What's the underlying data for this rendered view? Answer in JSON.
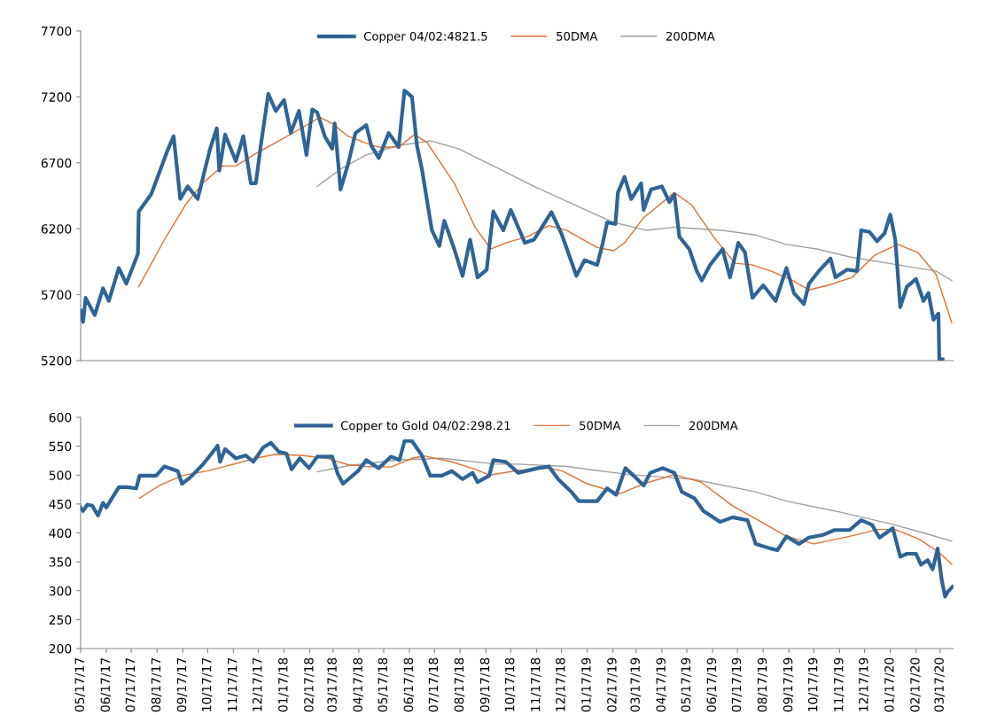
{
  "chart_data": [
    {
      "type": "line",
      "legend": "top",
      "tick_labels": "y",
      "xlim": [
        "2017-05-17",
        "2020-04-02"
      ],
      "ylim": [
        5200,
        7700
      ],
      "yticks": [
        5200,
        5700,
        6200,
        6700,
        7200,
        7700
      ],
      "series": [
        {
          "name": "Copper 04/02:4821.5",
          "color": "#2e6496",
          "x": [
            "2017-05-17",
            "2017-05-20",
            "2017-05-23",
            "2017-06-03",
            "2017-06-13",
            "2017-06-20",
            "2017-07-02",
            "2017-07-11",
            "2017-07-25",
            "2017-07-26",
            "2017-08-10",
            "2017-08-29",
            "2017-09-06",
            "2017-09-14",
            "2017-09-23",
            "2017-10-05",
            "2017-10-20",
            "2017-10-28",
            "2017-10-31",
            "2017-11-07",
            "2017-11-20",
            "2017-11-29",
            "2017-12-08",
            "2017-12-14",
            "2017-12-20",
            "2017-12-29",
            "2018-01-07",
            "2018-01-17",
            "2018-01-25",
            "2018-02-04",
            "2018-02-13",
            "2018-02-20",
            "2018-02-26",
            "2018-03-07",
            "2018-03-16",
            "2018-03-19",
            "2018-03-26",
            "2018-04-04",
            "2018-04-13",
            "2018-04-26",
            "2018-05-02",
            "2018-05-11",
            "2018-05-23",
            "2018-06-04",
            "2018-06-11",
            "2018-06-20",
            "2018-06-26",
            "2018-07-02",
            "2018-07-14",
            "2018-07-23",
            "2018-07-29",
            "2018-08-10",
            "2018-08-20",
            "2018-08-29",
            "2018-09-07",
            "2018-09-18",
            "2018-09-26",
            "2018-10-08",
            "2018-10-17",
            "2018-11-03",
            "2018-11-14",
            "2018-12-05",
            "2018-12-17",
            "2019-01-04",
            "2019-01-14",
            "2019-01-29",
            "2019-02-04",
            "2019-02-10",
            "2019-02-20",
            "2019-02-23",
            "2019-03-03",
            "2019-03-11",
            "2019-03-23",
            "2019-03-26",
            "2019-04-04",
            "2019-04-17",
            "2019-04-26",
            "2019-05-02",
            "2019-05-08",
            "2019-05-20",
            "2019-05-29",
            "2019-06-04",
            "2019-06-14",
            "2019-06-23",
            "2019-06-29",
            "2019-07-08",
            "2019-07-18",
            "2019-07-26",
            "2019-08-04",
            "2019-08-17",
            "2019-09-01",
            "2019-09-14",
            "2019-09-23",
            "2019-10-05",
            "2019-10-11",
            "2019-10-23",
            "2019-11-06",
            "2019-11-12",
            "2019-11-26",
            "2019-12-08",
            "2019-12-13",
            "2019-12-23",
            "2020-01-01",
            "2020-01-10",
            "2020-01-17",
            "2020-01-23",
            "2020-01-29",
            "2020-02-06",
            "2020-02-17",
            "2020-02-26",
            "2020-03-03",
            "2020-03-09",
            "2020-03-15",
            "2020-03-16",
            "2020-03-20"
          ],
          "values": [
            5580,
            5493,
            5676,
            5545,
            5748,
            5652,
            5902,
            5783,
            6010,
            6330,
            6462,
            6783,
            6902,
            6426,
            6521,
            6426,
            6807,
            6962,
            6640,
            6914,
            6712,
            6902,
            6545,
            6545,
            6831,
            7224,
            7093,
            7176,
            6926,
            7093,
            6760,
            7105,
            7081,
            6902,
            6807,
            6998,
            6498,
            6688,
            6926,
            6986,
            6831,
            6736,
            6926,
            6819,
            7248,
            7200,
            6831,
            6652,
            6188,
            6069,
            6260,
            6045,
            5843,
            6117,
            5831,
            5890,
            6331,
            6188,
            6343,
            6093,
            6117,
            6326,
            6164,
            5843,
            5962,
            5926,
            6069,
            6248,
            6236,
            6474,
            6593,
            6426,
            6545,
            6343,
            6498,
            6521,
            6402,
            6462,
            6140,
            6045,
            5879,
            5807,
            5926,
            5998,
            6045,
            5831,
            6093,
            6021,
            5676,
            5771,
            5652,
            5902,
            5712,
            5629,
            5783,
            5879,
            5974,
            5831,
            5890,
            5879,
            6188,
            6176,
            6105,
            6164,
            6307,
            6117,
            5605,
            5760,
            5819,
            5652,
            5712,
            5510,
            5557,
            5210,
            5210
          ]
        },
        {
          "name": "50DMA",
          "color": "#e07030",
          "x": [
            "2017-07-26",
            "2017-08-26",
            "2017-09-20",
            "2017-10-11",
            "2017-11-04",
            "2017-11-20",
            "2017-12-11",
            "2018-01-11",
            "2018-02-10",
            "2018-03-01",
            "2018-03-16",
            "2018-04-04",
            "2018-04-23",
            "2018-05-11",
            "2018-06-04",
            "2018-06-23",
            "2018-07-08",
            "2018-08-10",
            "2018-09-04",
            "2018-09-23",
            "2018-10-11",
            "2018-11-06",
            "2018-12-02",
            "2018-12-23",
            "2019-01-29",
            "2019-02-18",
            "2019-03-03",
            "2019-03-26",
            "2019-05-02",
            "2019-05-23",
            "2019-06-18",
            "2019-07-14",
            "2019-08-03",
            "2019-08-26",
            "2019-09-18",
            "2019-10-11",
            "2019-11-03",
            "2019-12-02",
            "2019-12-29",
            "2020-01-26",
            "2020-02-19",
            "2020-03-12",
            "2020-03-31"
          ],
          "values": [
            5760,
            6117,
            6379,
            6545,
            6676,
            6676,
            6760,
            6867,
            6974,
            7045,
            6998,
            6902,
            6855,
            6819,
            6819,
            6914,
            6855,
            6545,
            6212,
            6045,
            6093,
            6140,
            6224,
            6188,
            6057,
            6033,
            6093,
            6283,
            6474,
            6379,
            6140,
            5938,
            5926,
            5879,
            5819,
            5736,
            5771,
            5831,
            5998,
            6081,
            6021,
            5855,
            5486
          ]
        },
        {
          "name": "200DMA",
          "color": "#a0a0a0",
          "x": [
            "2018-02-26",
            "2018-03-26",
            "2018-04-26",
            "2018-06-04",
            "2018-07-12",
            "2018-08-15",
            "2018-09-30",
            "2018-11-14",
            "2019-01-11",
            "2019-02-18",
            "2019-03-29",
            "2019-05-02",
            "2019-06-29",
            "2019-08-08",
            "2019-09-14",
            "2019-10-22",
            "2019-11-29",
            "2020-01-26",
            "2020-03-12",
            "2020-03-31"
          ],
          "values": [
            6521,
            6652,
            6760,
            6831,
            6867,
            6807,
            6664,
            6521,
            6355,
            6248,
            6188,
            6212,
            6188,
            6152,
            6081,
            6045,
            5986,
            5926,
            5879,
            5807
          ]
        }
      ]
    },
    {
      "type": "line",
      "legend": "top",
      "xlim": [
        "2017-05-17",
        "2020-04-02"
      ],
      "ylim": [
        200,
        600
      ],
      "yticks": [
        200,
        250,
        300,
        350,
        400,
        450,
        500,
        550,
        600
      ],
      "xticks": [
        {
          "value": "2017-05-17",
          "label": "05/17/17"
        },
        {
          "value": "2017-06-17",
          "label": "06/17/17"
        },
        {
          "value": "2017-07-17",
          "label": "07/17/17"
        },
        {
          "value": "2017-08-17",
          "label": "08/17/17"
        },
        {
          "value": "2017-09-17",
          "label": "09/17/17"
        },
        {
          "value": "2017-10-17",
          "label": "10/17/17"
        },
        {
          "value": "2017-11-17",
          "label": "11/17/17"
        },
        {
          "value": "2017-12-17",
          "label": "12/17/17"
        },
        {
          "value": "2018-01-17",
          "label": "01/17/18"
        },
        {
          "value": "2018-02-17",
          "label": "02/17/18"
        },
        {
          "value": "2018-03-17",
          "label": "03/17/18"
        },
        {
          "value": "2018-04-17",
          "label": "04/17/18"
        },
        {
          "value": "2018-05-17",
          "label": "05/17/18"
        },
        {
          "value": "2018-06-17",
          "label": "06/17/18"
        },
        {
          "value": "2018-07-17",
          "label": "07/17/18"
        },
        {
          "value": "2018-08-17",
          "label": "08/17/18"
        },
        {
          "value": "2018-09-17",
          "label": "09/17/18"
        },
        {
          "value": "2018-10-17",
          "label": "10/17/18"
        },
        {
          "value": "2018-11-17",
          "label": "11/17/18"
        },
        {
          "value": "2018-12-17",
          "label": "12/17/18"
        },
        {
          "value": "2019-01-17",
          "label": "01/17/19"
        },
        {
          "value": "2019-02-17",
          "label": "02/17/19"
        },
        {
          "value": "2019-03-17",
          "label": "03/17/19"
        },
        {
          "value": "2019-04-17",
          "label": "04/17/19"
        },
        {
          "value": "2019-05-17",
          "label": "05/17/19"
        },
        {
          "value": "2019-06-17",
          "label": "06/17/19"
        },
        {
          "value": "2019-07-17",
          "label": "07/17/19"
        },
        {
          "value": "2019-08-17",
          "label": "08/17/19"
        },
        {
          "value": "2019-09-17",
          "label": "09/17/19"
        },
        {
          "value": "2019-10-17",
          "label": "10/17/19"
        },
        {
          "value": "2019-11-17",
          "label": "11/17/19"
        },
        {
          "value": "2019-12-17",
          "label": "12/17/19"
        },
        {
          "value": "2020-01-17",
          "label": "01/17/20"
        },
        {
          "value": "2020-02-17",
          "label": "02/17/20"
        },
        {
          "value": "2020-03-17",
          "label": "03/17/20"
        }
      ],
      "series": [
        {
          "name": "Copper to Gold 04/02:298.21",
          "color": "#2e6496",
          "x": [
            "2017-05-17",
            "2017-05-20",
            "2017-05-25",
            "2017-05-31",
            "2017-06-07",
            "2017-06-13",
            "2017-06-17",
            "2017-06-23",
            "2017-07-02",
            "2017-07-12",
            "2017-07-23",
            "2017-07-27",
            "2017-08-16",
            "2017-08-26",
            "2017-09-11",
            "2017-09-16",
            "2017-09-26",
            "2017-10-11",
            "2017-10-20",
            "2017-10-29",
            "2017-11-01",
            "2017-11-07",
            "2017-11-20",
            "2017-12-02",
            "2017-12-11",
            "2017-12-23",
            "2018-01-01",
            "2018-01-11",
            "2018-01-20",
            "2018-01-26",
            "2018-02-05",
            "2018-02-16",
            "2018-02-26",
            "2018-03-16",
            "2018-03-23",
            "2018-03-29",
            "2018-04-16",
            "2018-04-26",
            "2018-05-11",
            "2018-05-26",
            "2018-06-05",
            "2018-06-11",
            "2018-06-20",
            "2018-07-02",
            "2018-07-12",
            "2018-07-26",
            "2018-08-07",
            "2018-08-20",
            "2018-09-01",
            "2018-09-07",
            "2018-09-21",
            "2018-09-26",
            "2018-10-11",
            "2018-10-26",
            "2018-11-19",
            "2018-12-02",
            "2018-12-13",
            "2018-12-29",
            "2019-01-07",
            "2019-01-29",
            "2019-02-10",
            "2019-02-21",
            "2019-03-04",
            "2019-03-14",
            "2019-03-26",
            "2019-04-03",
            "2019-04-18",
            "2019-05-02",
            "2019-05-11",
            "2019-05-26",
            "2019-06-06",
            "2019-06-26",
            "2019-07-11",
            "2019-07-29",
            "2019-08-08",
            "2019-08-26",
            "2019-09-03",
            "2019-09-14",
            "2019-09-29",
            "2019-10-11",
            "2019-10-29",
            "2019-11-11",
            "2019-11-29",
            "2019-12-13",
            "2019-12-26",
            "2020-01-04",
            "2020-01-20",
            "2020-01-29",
            "2020-02-06",
            "2020-02-17",
            "2020-02-23",
            "2020-03-02",
            "2020-03-08",
            "2020-03-14",
            "2020-03-19",
            "2020-03-23",
            "2020-03-26",
            "2020-04-01"
          ],
          "values": [
            444,
            438,
            449,
            447,
            430,
            452,
            444,
            458,
            479,
            479,
            477,
            499,
            499,
            515,
            507,
            485,
            496,
            518,
            534,
            551,
            523,
            545,
            529,
            534,
            523,
            548,
            556,
            540,
            537,
            510,
            529,
            512,
            532,
            532,
            501,
            485,
            507,
            526,
            512,
            532,
            526,
            559,
            559,
            534,
            499,
            499,
            507,
            493,
            504,
            488,
            499,
            526,
            523,
            504,
            512,
            515,
            493,
            471,
            455,
            455,
            477,
            466,
            512,
            499,
            482,
            504,
            512,
            504,
            471,
            460,
            438,
            419,
            427,
            422,
            381,
            373,
            370,
            394,
            381,
            392,
            397,
            405,
            405,
            422,
            414,
            392,
            408,
            359,
            364,
            364,
            345,
            353,
            337,
            373,
            318,
            290,
            298,
            307
          ]
        },
        {
          "name": "50DMA",
          "color": "#e07030",
          "x": [
            "2017-07-27",
            "2017-08-20",
            "2017-09-16",
            "2017-10-16",
            "2017-11-15",
            "2017-12-13",
            "2018-01-07",
            "2018-02-07",
            "2018-03-10",
            "2018-04-04",
            "2018-04-26",
            "2018-05-26",
            "2018-06-20",
            "2018-07-05",
            "2018-08-07",
            "2018-09-04",
            "2018-09-21",
            "2018-10-26",
            "2018-12-02",
            "2018-12-18",
            "2019-01-17",
            "2019-02-26",
            "2019-03-26",
            "2019-05-02",
            "2019-06-03",
            "2019-07-11",
            "2019-08-11",
            "2019-09-14",
            "2019-10-17",
            "2019-11-29",
            "2020-01-02",
            "2020-01-23",
            "2020-02-21",
            "2020-03-15",
            "2020-03-31"
          ],
          "values": [
            460,
            482,
            499,
            507,
            518,
            529,
            536,
            534,
            529,
            518,
            515,
            514,
            529,
            533,
            523,
            510,
            500,
            508,
            512,
            507,
            485,
            468,
            485,
            501,
            488,
            447,
            422,
            394,
            381,
            394,
            406,
            406,
            389,
            367,
            346
          ]
        },
        {
          "name": "200DMA",
          "color": "#a0a0a0",
          "x": [
            "2018-02-26",
            "2018-04-04",
            "2018-06-01",
            "2018-07-26",
            "2018-09-30",
            "2018-10-26",
            "2018-12-23",
            "2019-03-08",
            "2019-05-23",
            "2019-08-08",
            "2019-09-14",
            "2019-11-11",
            "2020-01-17",
            "2020-02-26",
            "2020-03-31"
          ],
          "values": [
            506,
            516,
            526,
            529,
            519,
            519,
            515,
            501,
            493,
            471,
            455,
            438,
            416,
            400,
            386
          ]
        }
      ]
    }
  ]
}
